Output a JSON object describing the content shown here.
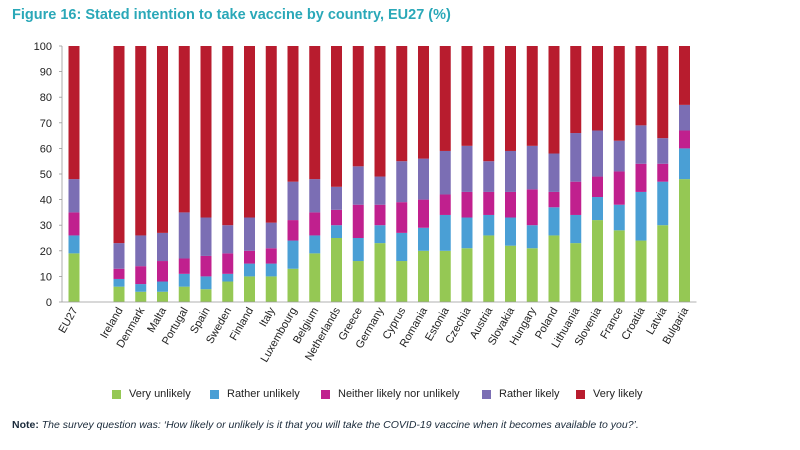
{
  "chart_data": {
    "type": "bar",
    "stacked": true,
    "title": "Figure 16: Stated intention to take vaccine by country, EU27 (%)",
    "xlabel": "",
    "ylabel": "",
    "ylim": [
      0,
      100
    ],
    "yticks": [
      "0",
      "10",
      "20",
      "30",
      "40",
      "50",
      "60",
      "70",
      "80",
      "90",
      "100"
    ],
    "grid": false,
    "legend_position": "bottom",
    "categories": [
      "EU27",
      "Ireland",
      "Denmark",
      "Malta",
      "Portugal",
      "Spain",
      "Sweden",
      "Finland",
      "Italy",
      "Luxembourg",
      "Belgium",
      "Netherlands",
      "Greece",
      "Germany",
      "Cyprus",
      "Romania",
      "Estonia",
      "Czechia",
      "Austria",
      "Slovakia",
      "Hungary",
      "Poland",
      "Lithuania",
      "Slovenia",
      "France",
      "Croatia",
      "Latvia",
      "Bulgaria"
    ],
    "gap_after_first": true,
    "series": [
      {
        "name": "Very unlikely",
        "color": "#95c854",
        "values": [
          19,
          6,
          4,
          4,
          6,
          5,
          8,
          10,
          10,
          13,
          19,
          25,
          16,
          23,
          16,
          20,
          20,
          21,
          26,
          22,
          21,
          26,
          23,
          32,
          28,
          24,
          30,
          48
        ]
      },
      {
        "name": "Rather unlikely",
        "color": "#4a9fd5",
        "values": [
          7,
          3,
          3,
          4,
          5,
          5,
          3,
          5,
          5,
          11,
          7,
          5,
          9,
          7,
          11,
          9,
          14,
          12,
          8,
          11,
          9,
          11,
          11,
          9,
          10,
          19,
          17,
          12
        ]
      },
      {
        "name": "Neither likely nor unlikely",
        "color": "#c0208e",
        "values": [
          9,
          4,
          7,
          8,
          6,
          8,
          8,
          5,
          6,
          8,
          9,
          6,
          13,
          8,
          12,
          11,
          8,
          10,
          9,
          10,
          14,
          6,
          13,
          8,
          13,
          11,
          7,
          7
        ]
      },
      {
        "name": "Rather likely",
        "color": "#7b6eb4",
        "values": [
          13,
          10,
          12,
          11,
          18,
          15,
          11,
          13,
          10,
          15,
          13,
          9,
          15,
          11,
          16,
          16,
          17,
          18,
          12,
          16,
          17,
          15,
          19,
          18,
          12,
          15,
          10,
          10
        ]
      },
      {
        "name": "Very likely",
        "color": "#b81c2e",
        "values": [
          52,
          77,
          74,
          73,
          65,
          67,
          70,
          67,
          69,
          53,
          52,
          55,
          47,
          51,
          45,
          44,
          41,
          39,
          45,
          41,
          39,
          42,
          34,
          33,
          37,
          31,
          36,
          23
        ]
      }
    ]
  },
  "note": {
    "label": "Note:",
    "text": " The survey question was: ‘How likely or unlikely is it that you will take the COVID-19 vaccine when it becomes available to you?’."
  }
}
